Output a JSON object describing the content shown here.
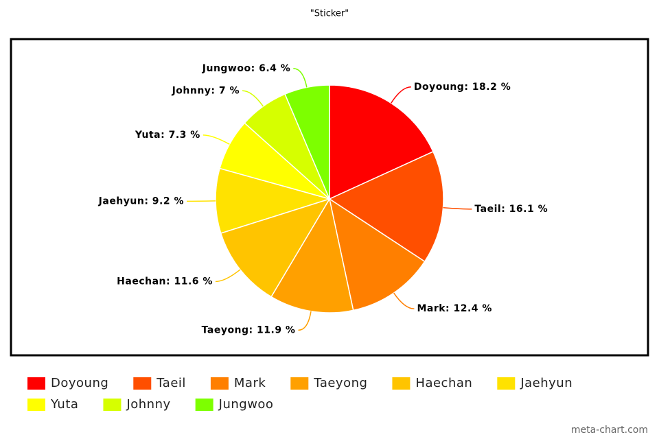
{
  "chart_data": {
    "type": "pie",
    "title": "\"Sticker\"",
    "categories": [
      "Doyoung",
      "Taeil",
      "Mark",
      "Taeyong",
      "Haechan",
      "Jaehyun",
      "Yuta",
      "Johnny",
      "Jungwoo"
    ],
    "values": [
      18.2,
      16.1,
      12.4,
      11.9,
      11.6,
      9.2,
      7.3,
      7,
      6.4
    ],
    "value_labels": [
      "Doyoung: 18.2 %",
      "Taeil: 16.1 %",
      "Mark: 12.4 %",
      "Taeyong: 11.9 %",
      "Haechan: 11.6 %",
      "Jaehyun: 9.2 %",
      "Yuta: 7.3 %",
      "Johnny: 7 %",
      "Jungwoo: 6.4 %"
    ],
    "colors": [
      "#ff0000",
      "#ff4f00",
      "#ff7f00",
      "#ffa000",
      "#ffc400",
      "#ffe200",
      "#ffff00",
      "#d6ff00",
      "#7dff00"
    ],
    "legend": "bottom",
    "source": "meta-chart.com"
  }
}
